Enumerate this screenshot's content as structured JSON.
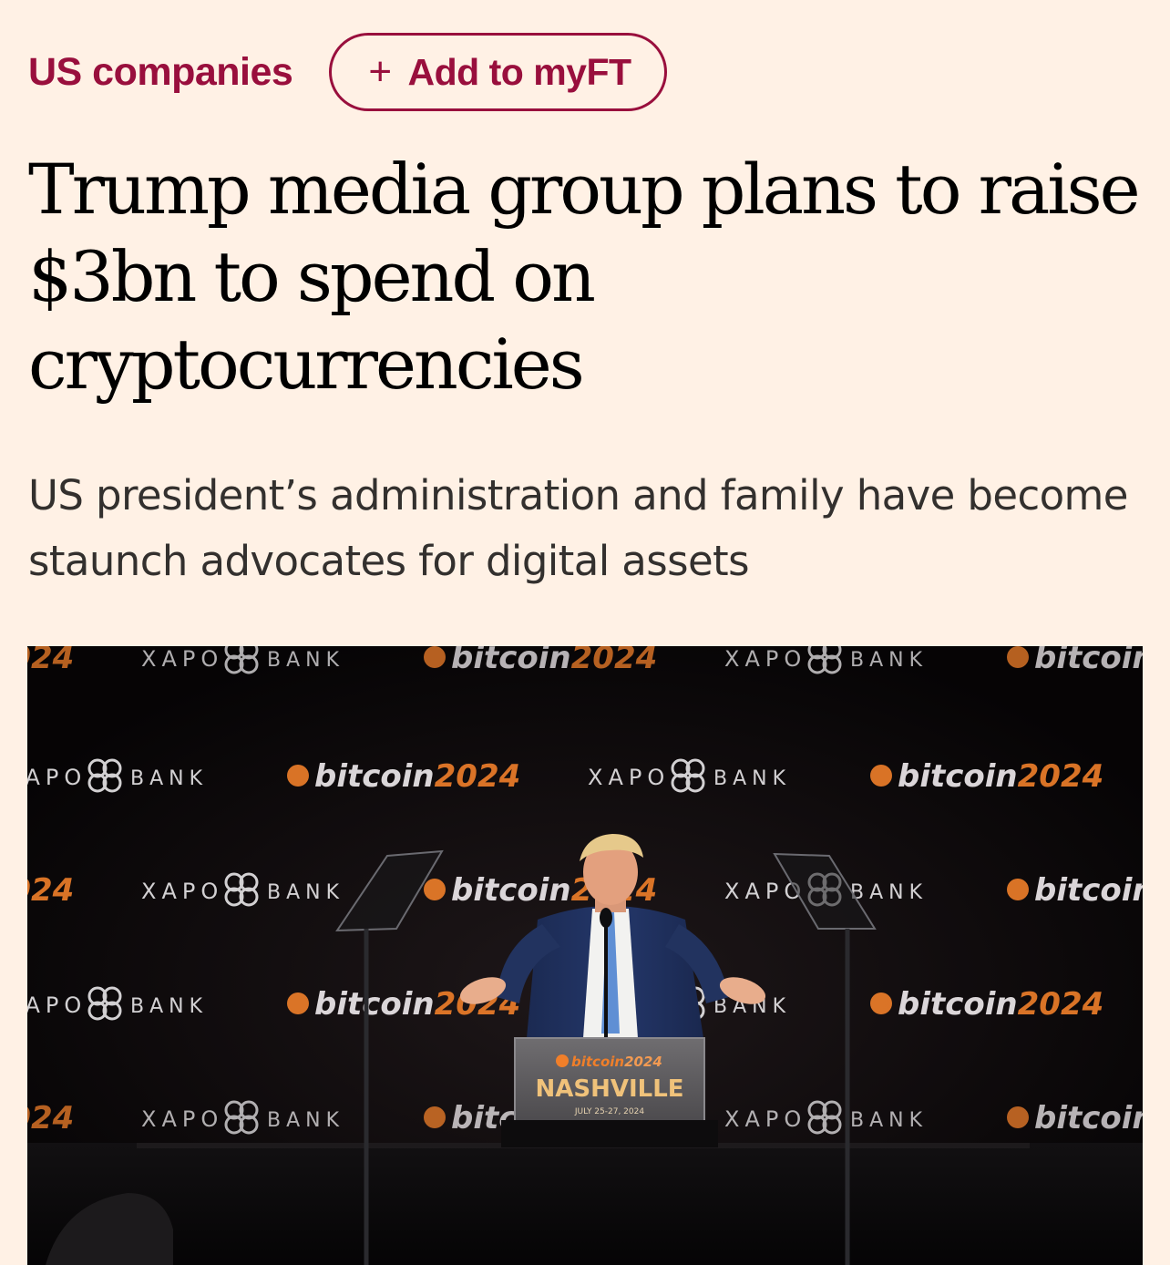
{
  "topic": {
    "label": "US companies",
    "color": "#990f3d"
  },
  "myft_button": {
    "icon": "plus-icon",
    "plus_glyph": "+",
    "label": "Add to myFT"
  },
  "headline": "Trump media group plans to raise $3bn to spend on cryptocurrencies",
  "standfirst": "US president’s administration and family have become staunch advocates for digital assets",
  "photo": {
    "backdrop": {
      "sponsor_word_1": "XAPO",
      "sponsor_word_2": "BANK",
      "event_brand": "bitcoin",
      "event_year": "2024"
    },
    "podium": {
      "brand": "bitcoin",
      "year": "2024",
      "city": "NASHVILLE",
      "dates": "JULY 25-27, 2024"
    },
    "colors": {
      "background": "#fff1e5",
      "photo_dark": "#0b0809",
      "bitcoin_orange": "#f07f2a"
    }
  }
}
